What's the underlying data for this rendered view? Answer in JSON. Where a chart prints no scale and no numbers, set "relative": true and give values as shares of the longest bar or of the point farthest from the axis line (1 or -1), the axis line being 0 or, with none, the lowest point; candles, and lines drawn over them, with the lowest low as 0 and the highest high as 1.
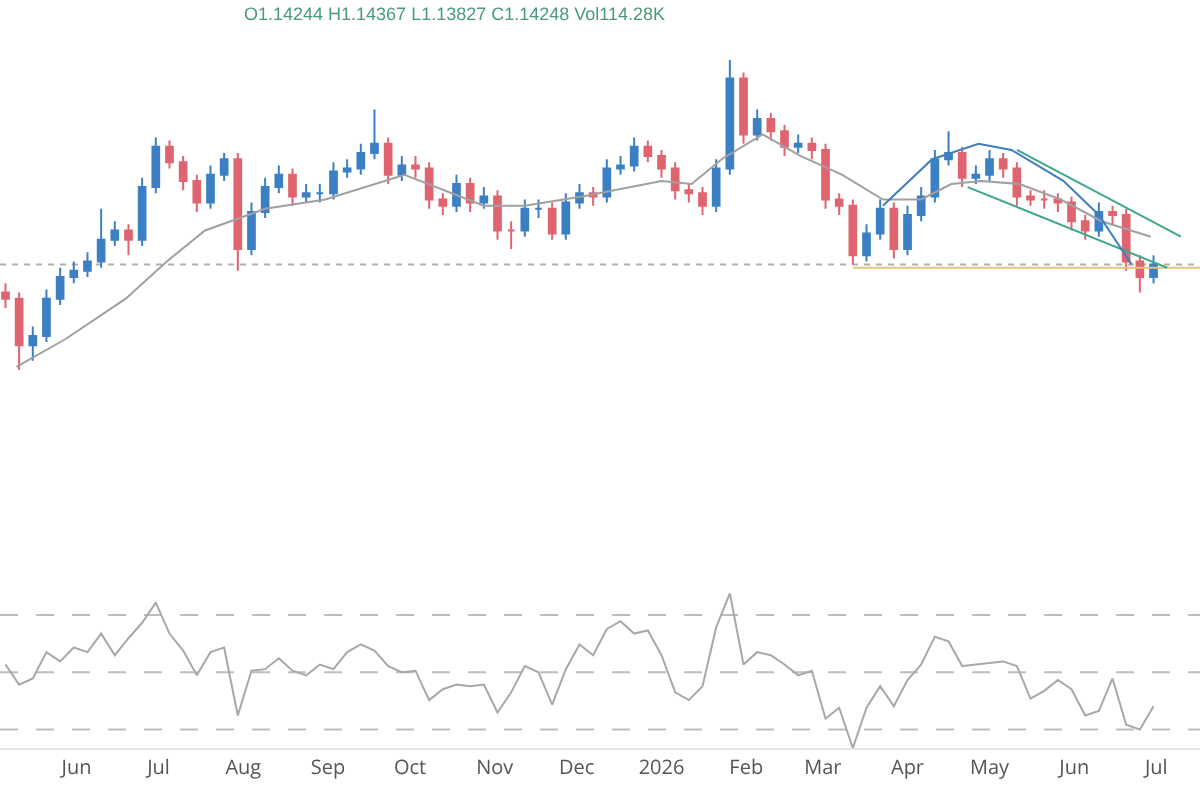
{
  "chart_data": [
    {
      "type": "candlestick",
      "relative": true,
      "tick_labels": false,
      "annotations": [
        "O1.14244 H1.14367 L1.13827 C1.14248 Vol114.28K"
      ],
      "xlim": [
        "2025-05-04",
        "2026-07-17"
      ],
      "x": [
        "2025-05-06",
        "2025-05-11",
        "2025-05-16",
        "2025-05-21",
        "2025-05-26",
        "2025-05-31",
        "2025-06-05",
        "2025-06-10",
        "2025-06-15",
        "2025-06-20",
        "2025-06-25",
        "2025-06-30",
        "2025-07-05",
        "2025-07-10",
        "2025-07-15",
        "2025-07-20",
        "2025-07-25",
        "2025-07-30",
        "2025-08-04",
        "2025-08-09",
        "2025-08-14",
        "2025-08-19",
        "2025-08-24",
        "2025-08-29",
        "2025-09-03",
        "2025-09-08",
        "2025-09-13",
        "2025-09-18",
        "2025-09-23",
        "2025-09-28",
        "2025-10-03",
        "2025-10-08",
        "2025-10-13",
        "2025-10-18",
        "2025-10-23",
        "2025-10-28",
        "2025-11-02",
        "2025-11-07",
        "2025-11-12",
        "2025-11-17",
        "2025-11-22",
        "2025-11-27",
        "2025-12-02",
        "2025-12-07",
        "2025-12-12",
        "2025-12-17",
        "2025-12-22",
        "2025-12-27",
        "2026-01-01",
        "2026-01-06",
        "2026-01-11",
        "2026-01-16",
        "2026-01-21",
        "2026-01-26",
        "2026-01-31",
        "2026-02-05",
        "2026-02-10",
        "2026-02-15",
        "2026-02-20",
        "2026-02-25",
        "2026-03-02",
        "2026-03-07",
        "2026-03-12",
        "2026-03-17",
        "2026-03-22",
        "2026-03-27",
        "2026-04-01",
        "2026-04-06",
        "2026-04-11",
        "2026-04-16",
        "2026-04-21",
        "2026-04-26",
        "2026-05-01",
        "2026-05-06",
        "2026-05-11",
        "2026-05-16",
        "2026-05-21",
        "2026-05-26",
        "2026-05-31",
        "2026-06-05",
        "2026-06-10",
        "2026-06-15",
        "2026-06-20",
        "2026-06-25",
        "2026-06-30"
      ],
      "ohlc": [
        [
          0.25,
          0.28,
          0.2,
          0.23
        ],
        [
          0.23,
          0.25,
          0,
          0.08
        ],
        [
          0.08,
          0.14,
          0.03,
          0.11
        ],
        [
          0.11,
          0.26,
          0.09,
          0.23
        ],
        [
          0.23,
          0.33,
          0.21,
          0.3
        ],
        [
          0.3,
          0.35,
          0.28,
          0.32
        ],
        [
          0.32,
          0.38,
          0.3,
          0.35
        ],
        [
          0.35,
          0.52,
          0.33,
          0.42
        ],
        [
          0.42,
          0.48,
          0.4,
          0.45
        ],
        [
          0.45,
          0.47,
          0.37,
          0.42
        ],
        [
          0.42,
          0.62,
          0.4,
          0.59
        ],
        [
          0.59,
          0.75,
          0.57,
          0.72
        ],
        [
          0.72,
          0.74,
          0.65,
          0.67
        ],
        [
          0.67,
          0.69,
          0.58,
          0.61
        ],
        [
          0.61,
          0.63,
          0.51,
          0.54
        ],
        [
          0.54,
          0.66,
          0.52,
          0.63
        ],
        [
          0.63,
          0.7,
          0.61,
          0.68
        ],
        [
          0.68,
          0.7,
          0.32,
          0.39
        ],
        [
          0.39,
          0.54,
          0.37,
          0.51
        ],
        [
          0.51,
          0.62,
          0.49,
          0.59
        ],
        [
          0.59,
          0.66,
          0.57,
          0.63
        ],
        [
          0.63,
          0.65,
          0.53,
          0.56
        ],
        [
          0.56,
          0.6,
          0.54,
          0.57
        ],
        [
          0.57,
          0.6,
          0.54,
          0.57
        ],
        [
          0.57,
          0.67,
          0.55,
          0.64
        ],
        [
          0.64,
          0.68,
          0.62,
          0.65
        ],
        [
          0.65,
          0.73,
          0.63,
          0.7
        ],
        [
          0.7,
          0.84,
          0.68,
          0.73
        ],
        [
          0.73,
          0.75,
          0.6,
          0.63
        ],
        [
          0.63,
          0.69,
          0.61,
          0.66
        ],
        [
          0.66,
          0.69,
          0.62,
          0.65
        ],
        [
          0.65,
          0.67,
          0.52,
          0.55
        ],
        [
          0.55,
          0.57,
          0.5,
          0.53
        ],
        [
          0.53,
          0.63,
          0.51,
          0.6
        ],
        [
          0.6,
          0.62,
          0.51,
          0.54
        ],
        [
          0.54,
          0.59,
          0.52,
          0.56
        ],
        [
          0.56,
          0.58,
          0.42,
          0.45
        ],
        [
          0.45,
          0.48,
          0.39,
          0.45
        ],
        [
          0.45,
          0.55,
          0.43,
          0.52
        ],
        [
          0.52,
          0.55,
          0.49,
          0.52
        ],
        [
          0.52,
          0.54,
          0.42,
          0.44
        ],
        [
          0.44,
          0.57,
          0.42,
          0.54
        ],
        [
          0.54,
          0.6,
          0.52,
          0.57
        ],
        [
          0.57,
          0.59,
          0.53,
          0.56
        ],
        [
          0.56,
          0.68,
          0.54,
          0.65
        ],
        [
          0.65,
          0.69,
          0.63,
          0.66
        ],
        [
          0.66,
          0.75,
          0.64,
          0.72
        ],
        [
          0.72,
          0.74,
          0.67,
          0.69
        ],
        [
          0.69,
          0.71,
          0.62,
          0.65
        ],
        [
          0.65,
          0.67,
          0.55,
          0.58
        ],
        [
          0.58,
          0.6,
          0.54,
          0.57
        ],
        [
          0.57,
          0.59,
          0.5,
          0.53
        ],
        [
          0.53,
          0.68,
          0.51,
          0.65
        ],
        [
          0.65,
          1,
          0.63,
          0.94
        ],
        [
          0.94,
          0.96,
          0.73,
          0.76
        ],
        [
          0.76,
          0.84,
          0.74,
          0.81
        ],
        [
          0.81,
          0.83,
          0.74,
          0.77
        ],
        [
          0.77,
          0.79,
          0.69,
          0.72
        ],
        [
          0.72,
          0.76,
          0.7,
          0.73
        ],
        [
          0.73,
          0.75,
          0.68,
          0.71
        ],
        [
          0.71,
          0.73,
          0.52,
          0.55
        ],
        [
          0.55,
          0.57,
          0.5,
          0.53
        ],
        [
          0.53,
          0.55,
          0.34,
          0.37
        ],
        [
          0.37,
          0.47,
          0.35,
          0.44
        ],
        [
          0.44,
          0.55,
          0.42,
          0.52
        ],
        [
          0.52,
          0.54,
          0.36,
          0.39
        ],
        [
          0.39,
          0.53,
          0.37,
          0.5
        ],
        [
          0.5,
          0.59,
          0.48,
          0.56
        ],
        [
          0.56,
          0.71,
          0.54,
          0.68
        ],
        [
          0.68,
          0.77,
          0.66,
          0.7
        ],
        [
          0.7,
          0.72,
          0.59,
          0.62
        ],
        [
          0.62,
          0.66,
          0.6,
          0.63
        ],
        [
          0.63,
          0.71,
          0.61,
          0.68
        ],
        [
          0.68,
          0.7,
          0.62,
          0.65
        ],
        [
          0.65,
          0.67,
          0.53,
          0.56
        ],
        [
          0.56,
          0.58,
          0.53,
          0.55
        ],
        [
          0.55,
          0.58,
          0.52,
          0.55
        ],
        [
          0.55,
          0.57,
          0.51,
          0.54
        ],
        [
          0.54,
          0.56,
          0.45,
          0.48
        ],
        [
          0.48,
          0.5,
          0.42,
          0.45
        ],
        [
          0.45,
          0.54,
          0.43,
          0.51
        ],
        [
          0.51,
          0.53,
          0.47,
          0.5
        ],
        [
          0.5,
          0.52,
          0.32,
          0.35
        ],
        [
          0.35,
          0.37,
          0.25,
          0.3
        ],
        [
          0.3,
          0.37,
          0.28,
          0.34
        ]
      ],
      "ref_lines": [
        {
          "axis": "y",
          "value": 0.34,
          "color": "#b0b0b0",
          "line_style": "dotted"
        }
      ],
      "series": [
        {
          "type": "line",
          "color": "#a0a0a0",
          "x": [
            "2025-05-10",
            "2025-05-28",
            "2025-06-19",
            "2025-07-04",
            "2025-07-18",
            "2025-08-09",
            "2025-08-31",
            "2025-09-29",
            "2025-10-28",
            "2025-11-12",
            "2025-12-03",
            "2026-01-01",
            "2026-01-12",
            "2026-01-23",
            "2026-02-07",
            "2026-02-21",
            "2026-03-08",
            "2026-03-23",
            "2026-04-06",
            "2026-04-17",
            "2026-04-28",
            "2026-05-12",
            "2026-05-27",
            "2026-06-11",
            "2026-06-29"
          ],
          "values": [
            0.01,
            0.1,
            0.23,
            0.35,
            0.45,
            0.52,
            0.55,
            0.63,
            0.53,
            0.53,
            0.56,
            0.61,
            0.6,
            0.68,
            0.76,
            0.69,
            0.63,
            0.55,
            0.55,
            0.6,
            0.61,
            0.6,
            0.55,
            0.48,
            0.43
          ]
        },
        {
          "type": "line",
          "color": "#e8c27f",
          "x": [
            "2026-03-12",
            "2026-07-17"
          ],
          "values": [
            0.33,
            0.33
          ]
        },
        {
          "type": "line",
          "color": "#3fa88c",
          "x": [
            "2026-05-11",
            "2026-07-10"
          ],
          "values": [
            0.71,
            0.43
          ]
        },
        {
          "type": "line",
          "color": "#3fa88c",
          "x": [
            "2026-04-23",
            "2026-07-05"
          ],
          "values": [
            0.59,
            0.33
          ]
        },
        {
          "type": "line",
          "color": "#3f7fc0",
          "x": [
            "2026-03-23",
            "2026-04-10",
            "2026-04-27",
            "2026-05-09",
            "2026-05-28",
            "2026-06-10",
            "2026-06-22"
          ],
          "values": [
            0.53,
            0.68,
            0.73,
            0.71,
            0.61,
            0.5,
            0.34
          ]
        }
      ]
    },
    {
      "type": "line",
      "relative": true,
      "tick_labels": "x",
      "color": "#a8a8a8",
      "xlim": [
        "2025-05-04",
        "2026-07-17"
      ],
      "xticks": [
        {
          "value": "2025-06-01",
          "label": "Jun"
        },
        {
          "value": "2025-07-01",
          "label": "Jul"
        },
        {
          "value": "2025-08-01",
          "label": "Aug"
        },
        {
          "value": "2025-09-01",
          "label": "Sep"
        },
        {
          "value": "2025-10-01",
          "label": "Oct"
        },
        {
          "value": "2025-11-01",
          "label": "Nov"
        },
        {
          "value": "2025-12-01",
          "label": "Dec"
        },
        {
          "value": "2026-01-01",
          "label": "2026"
        },
        {
          "value": "2026-02-01",
          "label": "Feb"
        },
        {
          "value": "2026-03-01",
          "label": "Mar"
        },
        {
          "value": "2026-04-01",
          "label": "Apr"
        },
        {
          "value": "2026-05-01",
          "label": "May"
        },
        {
          "value": "2026-06-01",
          "label": "Jun"
        },
        {
          "value": "2026-07-01",
          "label": "Jul"
        }
      ],
      "x": [
        "2025-05-06",
        "2025-05-11",
        "2025-05-16",
        "2025-05-21",
        "2025-05-26",
        "2025-05-31",
        "2025-06-05",
        "2025-06-10",
        "2025-06-15",
        "2025-06-20",
        "2025-06-25",
        "2025-06-30",
        "2025-07-05",
        "2025-07-10",
        "2025-07-15",
        "2025-07-20",
        "2025-07-25",
        "2025-07-30",
        "2025-08-04",
        "2025-08-09",
        "2025-08-14",
        "2025-08-19",
        "2025-08-24",
        "2025-08-29",
        "2025-09-03",
        "2025-09-08",
        "2025-09-13",
        "2025-09-18",
        "2025-09-23",
        "2025-09-28",
        "2025-10-03",
        "2025-10-08",
        "2025-10-13",
        "2025-10-18",
        "2025-10-23",
        "2025-10-28",
        "2025-11-02",
        "2025-11-07",
        "2025-11-12",
        "2025-11-17",
        "2025-11-22",
        "2025-11-27",
        "2025-12-02",
        "2025-12-07",
        "2025-12-12",
        "2025-12-17",
        "2025-12-22",
        "2025-12-27",
        "2026-01-01",
        "2026-01-06",
        "2026-01-11",
        "2026-01-16",
        "2026-01-21",
        "2026-01-26",
        "2026-01-31",
        "2026-02-05",
        "2026-02-10",
        "2026-02-15",
        "2026-02-20",
        "2026-02-25",
        "2026-03-02",
        "2026-03-07",
        "2026-03-12",
        "2026-03-17",
        "2026-03-22",
        "2026-03-27",
        "2026-04-01",
        "2026-04-06",
        "2026-04-11",
        "2026-04-16",
        "2026-04-21",
        "2026-04-26",
        "2026-05-01",
        "2026-05-06",
        "2026-05-11",
        "2026-05-16",
        "2026-05-21",
        "2026-05-26",
        "2026-05-31",
        "2026-06-05",
        "2026-06-10",
        "2026-06-15",
        "2026-06-20",
        "2026-06-25",
        "2026-06-30"
      ],
      "values": [
        0.54,
        0.41,
        0.45,
        0.62,
        0.56,
        0.65,
        0.62,
        0.74,
        0.6,
        0.71,
        0.81,
        0.94,
        0.74,
        0.63,
        0.47,
        0.62,
        0.65,
        0.21,
        0.5,
        0.51,
        0.58,
        0.5,
        0.47,
        0.54,
        0.51,
        0.62,
        0.67,
        0.63,
        0.53,
        0.49,
        0.5,
        0.31,
        0.38,
        0.41,
        0.4,
        0.41,
        0.23,
        0.36,
        0.53,
        0.49,
        0.28,
        0.51,
        0.67,
        0.6,
        0.77,
        0.82,
        0.74,
        0.76,
        0.6,
        0.36,
        0.31,
        0.4,
        0.78,
        1,
        0.54,
        0.62,
        0.6,
        0.54,
        0.47,
        0.5,
        0.19,
        0.26,
        0,
        0.26,
        0.4,
        0.27,
        0.44,
        0.54,
        0.72,
        0.69,
        0.53,
        0.54,
        0.55,
        0.56,
        0.53,
        0.32,
        0.37,
        0.44,
        0.38,
        0.21,
        0.24,
        0.45,
        0.15,
        0.12,
        0.27
      ],
      "ref_lines": [
        {
          "axis": "y",
          "value": 0.86,
          "color": "#bdbdbd",
          "line_style": "dashed"
        },
        {
          "axis": "y",
          "value": 0.49,
          "color": "#bdbdbd",
          "line_style": "dashed"
        },
        {
          "axis": "y",
          "value": 0.12,
          "color": "#bdbdbd",
          "line_style": "dashed"
        }
      ]
    }
  ]
}
